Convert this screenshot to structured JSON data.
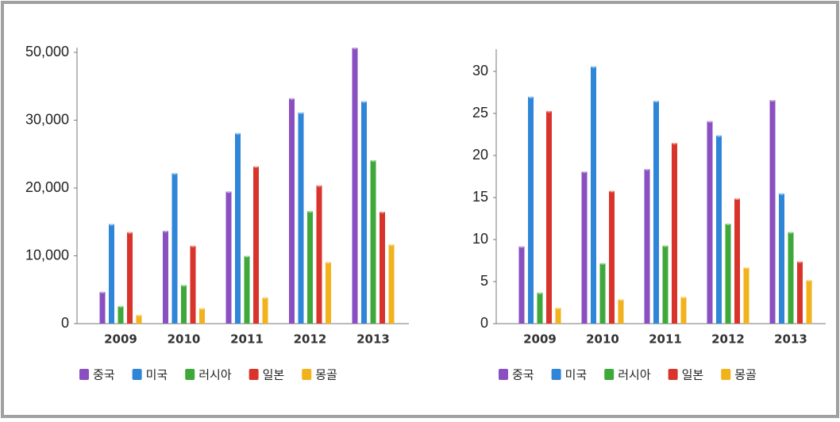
{
  "chart_data": [
    {
      "type": "bar",
      "categories": [
        "2009",
        "2010",
        "2011",
        "2012",
        "2013"
      ],
      "series": [
        {
          "name": "중국",
          "color": "#8a4fc0",
          "values": [
            4700,
            13700,
            19500,
            36500,
            51400
          ]
        },
        {
          "name": "미국",
          "color": "#2f86d8",
          "values": [
            14700,
            22200,
            28100,
            32300,
            35600
          ]
        },
        {
          "name": "러시아",
          "color": "#3fa83a",
          "values": [
            2600,
            5700,
            10000,
            16600,
            24100
          ]
        },
        {
          "name": "일본",
          "color": "#d9342b",
          "values": [
            13500,
            11500,
            23200,
            20400,
            16500
          ]
        },
        {
          "name": "몽골",
          "color": "#f2b21c",
          "values": [
            1300,
            2300,
            3900,
            9100,
            11700
          ]
        }
      ],
      "ylim": [
        0,
        50000
      ],
      "yticks": [
        0,
        {
          "value": 10000,
          "label": "10,000"
        },
        {
          "value": 20000,
          "label": "20,000"
        },
        {
          "value": 30000,
          "label": "30,000"
        },
        {
          "value": 50000,
          "label": "50,000"
        }
      ],
      "legend": "bottom"
    },
    {
      "type": "bar",
      "categories": [
        "2009",
        "2010",
        "2011",
        "2012",
        "2013"
      ],
      "series": [
        {
          "name": "중국",
          "color": "#8a4fc0",
          "values": [
            9.2,
            18.1,
            18.4,
            24.1,
            26.6
          ]
        },
        {
          "name": "미국",
          "color": "#2f86d8",
          "values": [
            27.0,
            30.6,
            26.5,
            22.4,
            15.5
          ]
        },
        {
          "name": "러시아",
          "color": "#3fa83a",
          "values": [
            3.7,
            7.2,
            9.3,
            11.9,
            10.9
          ]
        },
        {
          "name": "일본",
          "color": "#d9342b",
          "values": [
            25.3,
            15.8,
            21.5,
            14.9,
            7.4
          ]
        },
        {
          "name": "몽골",
          "color": "#f2b21c",
          "values": [
            1.9,
            2.9,
            3.2,
            6.7,
            5.2
          ]
        }
      ],
      "ylim": [
        0,
        32
      ],
      "yticks": [
        0,
        5,
        10,
        15,
        20,
        25,
        30
      ],
      "legend": "bottom"
    }
  ]
}
